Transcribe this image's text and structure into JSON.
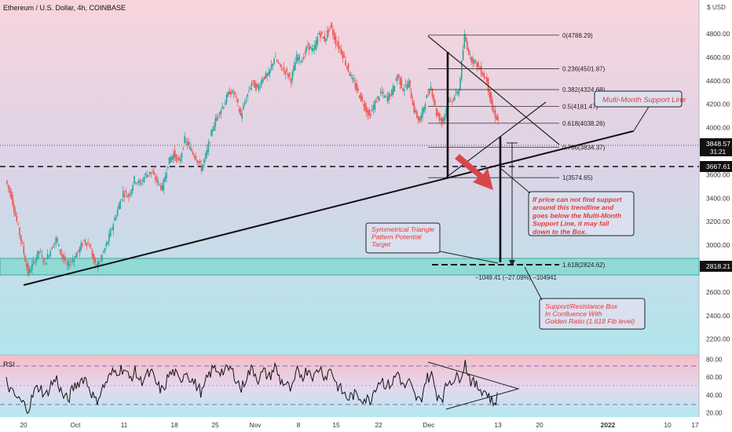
{
  "header": {
    "symbol_title": "Ethereum / U.S. Dollar, 4h, COINBASE",
    "currency": "$",
    "unit": "USD"
  },
  "chart_data": [
    {
      "type": "line",
      "name": "price",
      "title": "Ethereum / U.S. Dollar, 4h, COINBASE",
      "x_ticks": [
        "20",
        "Oct",
        "11",
        "18",
        "25",
        "Nov",
        "8",
        "15",
        "22",
        "Dec",
        "13",
        "20",
        "2022",
        "10",
        "17"
      ],
      "y_ticks": [
        4800,
        4600,
        4400,
        4200,
        4000,
        3600,
        3400,
        3200,
        3000,
        2600,
        2400,
        2200
      ],
      "ylim": [
        2050,
        4950
      ],
      "series": [
        {
          "x": [
            0,
            1,
            2,
            3,
            4,
            5,
            6,
            7,
            8,
            9,
            10,
            11,
            12,
            13,
            14,
            15,
            16,
            17,
            18,
            19,
            20,
            21,
            22,
            23,
            24,
            25,
            26,
            27,
            28,
            29,
            30,
            31,
            32,
            33,
            34,
            35,
            36,
            37,
            38,
            39,
            40,
            41,
            42,
            43,
            44,
            45,
            46,
            47,
            48,
            49,
            50,
            51,
            52,
            53,
            54,
            55,
            56,
            57,
            58,
            59,
            60,
            61,
            62,
            63,
            64,
            65,
            66,
            67,
            68,
            69,
            70,
            71,
            72,
            73,
            74,
            75,
            76,
            77,
            78,
            79,
            80,
            81,
            82,
            83,
            84,
            85,
            86,
            87,
            88
          ],
          "values": [
            3550,
            3420,
            3200,
            2990,
            2760,
            2850,
            2950,
            2850,
            2960,
            3050,
            2920,
            2820,
            2880,
            2950,
            3040,
            3000,
            2820,
            2880,
            3000,
            3150,
            3300,
            3450,
            3420,
            3560,
            3520,
            3600,
            3620,
            3550,
            3480,
            3700,
            3780,
            3700,
            3900,
            3820,
            3750,
            3650,
            3800,
            4000,
            4120,
            4200,
            4310,
            4280,
            4100,
            4250,
            4390,
            4330,
            4430,
            4450,
            4600,
            4520,
            4480,
            4410,
            4600,
            4580,
            4700,
            4650,
            4810,
            4750,
            4870,
            4730,
            4650,
            4520,
            4400,
            4300,
            4200,
            4100,
            4210,
            4300,
            4250,
            4300,
            4450,
            4330,
            4380,
            4150,
            4050,
            4230,
            4350,
            4120,
            4050,
            4200,
            4250,
            4320,
            4780,
            4600,
            4550,
            4480,
            4400,
            4150,
            4060
          ]
        }
      ],
      "annotations": {
        "current_price": "3848.57",
        "countdown": "31:21",
        "dashed_level_price": "3667.61",
        "box_level_price": "2818.21",
        "fib_levels": [
          {
            "ratio": "0",
            "label": "0(4788.29)",
            "price": 4788.29
          },
          {
            "ratio": "0.236",
            "label": "0.236(4501.87)",
            "price": 4501.87
          },
          {
            "ratio": "0.382",
            "label": "0.382(4324.68)",
            "price": 4324.68
          },
          {
            "ratio": "0.5",
            "label": "0.5(4181.47)",
            "price": 4181.47
          },
          {
            "ratio": "0.618",
            "label": "0.618(4038.26)",
            "price": 4038.26
          },
          {
            "ratio": "0.786",
            "label": "0.786(3834.37)",
            "price": 3834.37
          },
          {
            "ratio": "1",
            "label": "1(3574.65)",
            "price": 3574.65
          },
          {
            "ratio": "1.618",
            "label": "1.618(2824.62)",
            "price": 2824.62
          }
        ],
        "measure_label": "−1049.41 (−27.09%) −104941",
        "notes": {
          "support_line": "Multi-Month Support Line",
          "breakdown": [
            "If price can not find support",
            "around this trendline and",
            "goes below the Multi-Month",
            "Support Line, it may fall",
            "down to the Box."
          ],
          "triangle_target": [
            "Symmetrical Triangle",
            "Pattern Potential",
            "Target"
          ],
          "box_note": [
            "Support/Resistance Box",
            "In Confluence With",
            "Golden Ratio (1.618 Fib level)"
          ]
        }
      }
    },
    {
      "type": "line",
      "name": "rsi",
      "title": "RSI",
      "y_ticks": [
        80.0,
        60.0,
        40.0,
        20.0
      ],
      "ylim": [
        15,
        85
      ],
      "levels": {
        "upper": 70,
        "middle": 50,
        "lower": 30
      },
      "series": [
        {
          "x": [
            0,
            1,
            2,
            3,
            4,
            5,
            6,
            7,
            8,
            9,
            10,
            11,
            12,
            13,
            14,
            15,
            16,
            17,
            18,
            19,
            20,
            21,
            22,
            23,
            24,
            25,
            26,
            27,
            28,
            29,
            30,
            31,
            32,
            33,
            34,
            35,
            36,
            37,
            38,
            39,
            40,
            41,
            42,
            43,
            44,
            45,
            46,
            47,
            48,
            49,
            50,
            51,
            52,
            53,
            54,
            55,
            56,
            57,
            58,
            59,
            60,
            61,
            62,
            63,
            64,
            65,
            66,
            67,
            68,
            69,
            70,
            71,
            72,
            73,
            74,
            75,
            76,
            77,
            78,
            79,
            80,
            81,
            82,
            83,
            84,
            85,
            86,
            87,
            88
          ],
          "values": [
            55,
            42,
            36,
            30,
            25,
            44,
            50,
            38,
            52,
            58,
            40,
            34,
            48,
            55,
            60,
            46,
            32,
            45,
            56,
            65,
            68,
            70,
            58,
            66,
            55,
            62,
            64,
            50,
            44,
            62,
            66,
            54,
            68,
            58,
            50,
            42,
            60,
            70,
            68,
            66,
            70,
            60,
            46,
            62,
            70,
            58,
            66,
            60,
            72,
            56,
            52,
            44,
            66,
            62,
            70,
            60,
            72,
            60,
            70,
            52,
            44,
            36,
            40,
            38,
            36,
            34,
            50,
            58,
            50,
            54,
            66,
            48,
            54,
            38,
            32,
            58,
            62,
            40,
            38,
            56,
            58,
            60,
            76,
            56,
            50,
            46,
            42,
            30,
            40
          ]
        }
      ]
    }
  ],
  "colors": {
    "bullish": "#26a69a",
    "bearish": "#ef5350",
    "box_fill": "#7fd8cf",
    "note_text": "#e53935",
    "arrow": "#d32f2f",
    "rsi_line": "#1a1a1a",
    "rsi_band": "#8a7ad0"
  }
}
